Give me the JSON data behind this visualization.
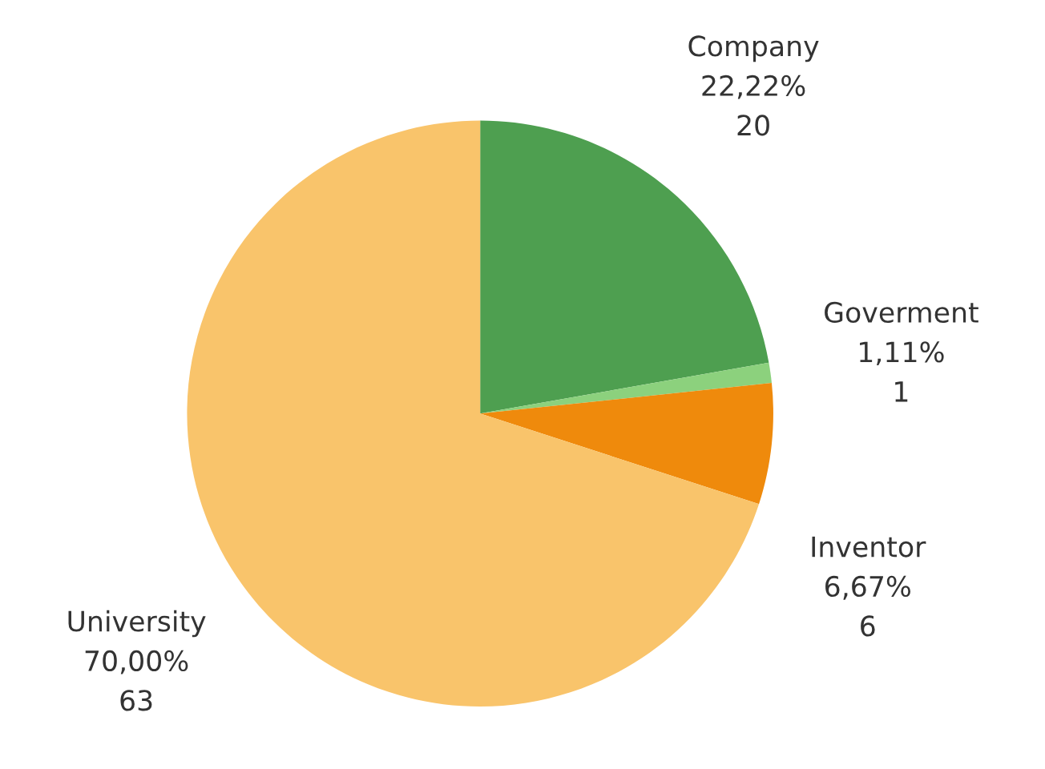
{
  "chart_data": {
    "type": "pie",
    "categories": [
      "Company",
      "Goverment",
      "Inventor",
      "University"
    ],
    "values": [
      20,
      1,
      6,
      63
    ],
    "colors": [
      "#4e9f50",
      "#8cd17d",
      "#ef8a0c",
      "#f9c46b"
    ],
    "value_labels": [
      "22,22%\n20",
      "1,11%\n1",
      "6,67%\n6",
      "70,00%\n63"
    ]
  }
}
